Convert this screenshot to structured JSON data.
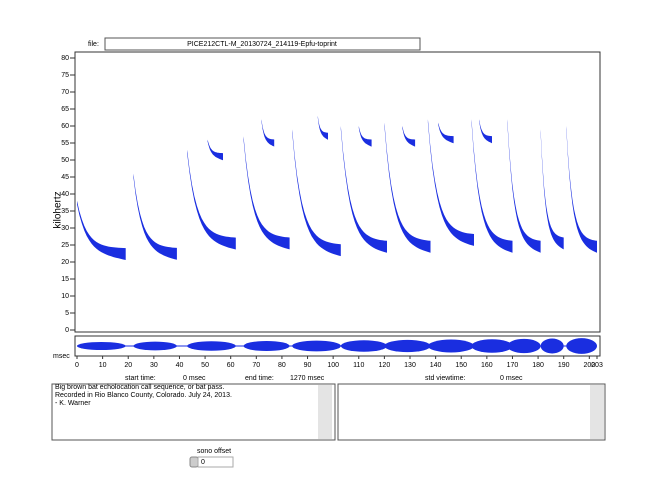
{
  "file_label": "file:",
  "file_name": "PICE212CTL-M_20130724_214119-Epfu-toprint",
  "chart_data": {
    "type": "spectrogram",
    "y_label": "kilohertz",
    "x_label": "msec",
    "ylim": [
      0,
      80
    ],
    "yticks": [
      0,
      5,
      10,
      15,
      20,
      25,
      30,
      35,
      40,
      45,
      50,
      55,
      60,
      65,
      70,
      75,
      80
    ],
    "xlim": [
      0,
      203
    ],
    "xticks": [
      0,
      10,
      20,
      30,
      40,
      50,
      60,
      70,
      80,
      90,
      100,
      110,
      120,
      130,
      140,
      150,
      160,
      170,
      180,
      190,
      200,
      203
    ],
    "color": "#1a2ee0",
    "calls": [
      {
        "start": 0,
        "end": 19,
        "high": 38,
        "low": 24
      },
      {
        "start": 22,
        "end": 39,
        "high": 46,
        "low": 24
      },
      {
        "start": 43,
        "end": 62,
        "high": 53,
        "low": 27
      },
      {
        "start": 65,
        "end": 83,
        "high": 57,
        "low": 27
      },
      {
        "start": 84,
        "end": 103,
        "high": 59,
        "low": 25
      },
      {
        "start": 103,
        "end": 121,
        "high": 60,
        "low": 26
      },
      {
        "start": 120,
        "end": 138,
        "high": 61,
        "low": 26
      },
      {
        "start": 137,
        "end": 155,
        "high": 62,
        "low": 28
      },
      {
        "start": 154,
        "end": 170,
        "high": 62,
        "low": 26
      },
      {
        "start": 168,
        "end": 181,
        "high": 62,
        "low": 26
      },
      {
        "start": 181,
        "end": 190,
        "high": 59,
        "low": 27
      },
      {
        "start": 191,
        "end": 203,
        "high": 60,
        "low": 26
      }
    ],
    "harmonics": [
      {
        "start": 51,
        "end": 57,
        "high": 56,
        "low": 52
      },
      {
        "start": 72,
        "end": 77,
        "high": 62,
        "low": 56
      },
      {
        "start": 94,
        "end": 98,
        "high": 63,
        "low": 58
      },
      {
        "start": 110,
        "end": 115,
        "high": 60,
        "low": 56
      },
      {
        "start": 127,
        "end": 132,
        "high": 60,
        "low": 56
      },
      {
        "start": 141,
        "end": 147,
        "high": 61,
        "low": 57
      },
      {
        "start": 157,
        "end": 162,
        "high": 62,
        "low": 57
      }
    ]
  },
  "start_time": {
    "label": "start time:",
    "value": "0 msec"
  },
  "end_time": {
    "label": "end time:",
    "value": "1270 msec"
  },
  "std_viewtime": {
    "label": "std viewtime:",
    "value": "0 msec"
  },
  "notes": [
    "Big brown bat echolocation call sequence, or bat pass.",
    "Recorded in Rio Blanco County, Colorado. July 24, 2013.",
    "- K. Warner"
  ],
  "sono_offset": {
    "label": "sono offset",
    "value": "0"
  }
}
